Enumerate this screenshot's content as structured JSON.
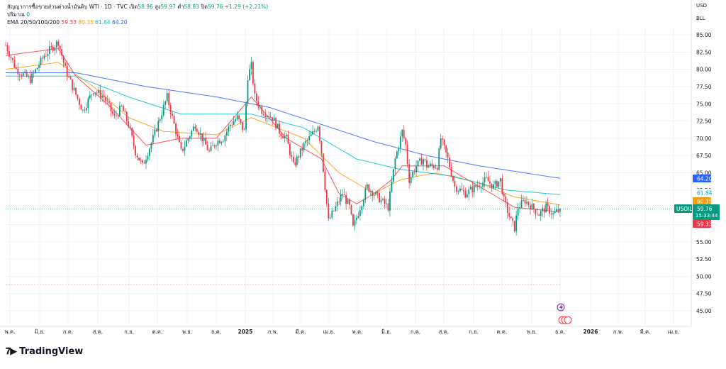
{
  "header": {
    "title": "สัญญาการซื้อขายส่วนต่างน้ำมันดิบ WTI · 1D · TVC",
    "open_label": "เปิด",
    "open": "58.96",
    "high_label": "สูง",
    "high": "59.97",
    "low_label": "ต่ำ",
    "low": "58.83",
    "close_label": "ปิด",
    "close": "59.76",
    "change": "+1.29 (+2.21%)",
    "volume_label": "ปริมาณ",
    "volume": "0",
    "ema_label": "EMA 20/50/100/200",
    "ema_values": [
      "59.33",
      "60.35",
      "61.84",
      "64.20"
    ]
  },
  "price_axis": {
    "unit_top": "USD",
    "unit_sub": "BLL"
  },
  "price_labels": {
    "ema200": "64.20",
    "ema100": "61.84",
    "ema50": "60.35",
    "ema20": "59.33",
    "symbol": "USOIL",
    "last": "59.76",
    "countdown": "15:33:44"
  },
  "brand": {
    "name": "TradingView"
  },
  "colors": {
    "up": "#089981",
    "down": "#f23645",
    "ema20": "#f23645",
    "ema50": "#ff9800",
    "ema100": "#00bcd4",
    "ema200": "#2962ff"
  },
  "chart_data": {
    "type": "line",
    "title": "สัญญาการซื้อขายส่วนต่างน้ำมันดิบ WTI · 1D · TVC",
    "ylim": [
      45,
      85
    ],
    "y_ticks": [
      "85.00",
      "82.50",
      "80.00",
      "77.50",
      "75.00",
      "72.50",
      "70.00",
      "67.50",
      "65.00",
      "62.50",
      "60.00",
      "57.50",
      "55.00",
      "52.50",
      "50.00",
      "47.50",
      "45.00"
    ],
    "x_ticks": [
      "พ.ค.",
      "มิ.ย.",
      "ก.ค.",
      "ส.ค.",
      "ก.ย.",
      "ต.ค.",
      "พ.ย.",
      "ธ.ค.",
      "2025",
      "ก.พ.",
      "มี.ค.",
      "เม.ย.",
      "พ.ค.",
      "มิ.ย.",
      "ก.ค.",
      "ส.ค.",
      "ก.ย.",
      "ต.ค.",
      "พ.ย.",
      "ธ.ค.",
      "2026",
      "ก.พ.",
      "มี.ค.",
      "เม.ย."
    ],
    "x_tick_bold": [
      false,
      false,
      false,
      false,
      false,
      false,
      false,
      false,
      true,
      false,
      false,
      false,
      false,
      false,
      false,
      false,
      false,
      false,
      false,
      false,
      true,
      false,
      false,
      false
    ],
    "price_path": [
      [
        0,
        83.5
      ],
      [
        6,
        80
      ],
      [
        14,
        78.5
      ],
      [
        22,
        82
      ],
      [
        30,
        84
      ],
      [
        34,
        80
      ],
      [
        38,
        77.5
      ],
      [
        44,
        74
      ],
      [
        50,
        77
      ],
      [
        56,
        76
      ],
      [
        62,
        73
      ],
      [
        66,
        74.5
      ],
      [
        70,
        72
      ],
      [
        74,
        68
      ],
      [
        78,
        66
      ],
      [
        84,
        70
      ],
      [
        88,
        73
      ],
      [
        92,
        76
      ],
      [
        96,
        72
      ],
      [
        100,
        68
      ],
      [
        104,
        70
      ],
      [
        108,
        72
      ],
      [
        112,
        70
      ],
      [
        116,
        68
      ],
      [
        120,
        69.5
      ],
      [
        124,
        70
      ],
      [
        128,
        72
      ],
      [
        132,
        73
      ],
      [
        136,
        71
      ],
      [
        138,
        79
      ],
      [
        140,
        80.5
      ],
      [
        142,
        76
      ],
      [
        146,
        74
      ],
      [
        152,
        73
      ],
      [
        156,
        71
      ],
      [
        160,
        70
      ],
      [
        164,
        66
      ],
      [
        170,
        69
      ],
      [
        176,
        71
      ],
      [
        178,
        72
      ],
      [
        180,
        68
      ],
      [
        184,
        58
      ],
      [
        188,
        60
      ],
      [
        192,
        62
      ],
      [
        196,
        60
      ],
      [
        198,
        57
      ],
      [
        202,
        60
      ],
      [
        206,
        63
      ],
      [
        210,
        62
      ],
      [
        214,
        61
      ],
      [
        218,
        60
      ],
      [
        222,
        67
      ],
      [
        224,
        69
      ],
      [
        226,
        71
      ],
      [
        228,
        69
      ],
      [
        230,
        64
      ],
      [
        234,
        66
      ],
      [
        238,
        67
      ],
      [
        240,
        66
      ],
      [
        246,
        66
      ],
      [
        248,
        70
      ],
      [
        252,
        67
      ],
      [
        256,
        63
      ],
      [
        262,
        62
      ],
      [
        268,
        63
      ],
      [
        274,
        64
      ],
      [
        278,
        63
      ],
      [
        282,
        64
      ],
      [
        284,
        61
      ],
      [
        288,
        58
      ],
      [
        290,
        57
      ],
      [
        292,
        60
      ],
      [
        296,
        61
      ],
      [
        300,
        60
      ],
      [
        304,
        59
      ],
      [
        308,
        60
      ],
      [
        312,
        59
      ],
      [
        316,
        59.76
      ]
    ],
    "series": [
      {
        "name": "EMA 20",
        "values": [
          [
            0,
            82
          ],
          [
            30,
            83
          ],
          [
            40,
            79
          ],
          [
            60,
            74.5
          ],
          [
            80,
            69
          ],
          [
            100,
            70
          ],
          [
            120,
            70
          ],
          [
            140,
            76
          ],
          [
            160,
            70
          ],
          [
            180,
            67
          ],
          [
            190,
            62
          ],
          [
            200,
            60.5
          ],
          [
            210,
            62
          ],
          [
            220,
            64
          ],
          [
            226,
            66
          ],
          [
            240,
            66
          ],
          [
            250,
            66
          ],
          [
            270,
            63
          ],
          [
            290,
            60
          ],
          [
            316,
            59.33
          ]
        ]
      },
      {
        "name": "EMA 50",
        "values": [
          [
            0,
            80
          ],
          [
            30,
            81
          ],
          [
            50,
            77.5
          ],
          [
            70,
            73
          ],
          [
            90,
            71
          ],
          [
            120,
            70.5
          ],
          [
            140,
            73
          ],
          [
            170,
            70
          ],
          [
            190,
            65
          ],
          [
            210,
            62
          ],
          [
            225,
            64
          ],
          [
            245,
            65
          ],
          [
            270,
            63.5
          ],
          [
            290,
            61.5
          ],
          [
            316,
            60.35
          ]
        ]
      },
      {
        "name": "EMA 100",
        "values": [
          [
            0,
            79
          ],
          [
            40,
            79
          ],
          [
            70,
            76
          ],
          [
            100,
            73.5
          ],
          [
            140,
            73.5
          ],
          [
            170,
            71.5
          ],
          [
            200,
            67
          ],
          [
            225,
            65.5
          ],
          [
            255,
            64.5
          ],
          [
            285,
            62.5
          ],
          [
            316,
            61.84
          ]
        ]
      },
      {
        "name": "EMA 200",
        "values": [
          [
            0,
            79.5
          ],
          [
            40,
            79.5
          ],
          [
            80,
            77.5
          ],
          [
            120,
            76
          ],
          [
            150,
            74.5
          ],
          [
            180,
            72
          ],
          [
            210,
            69.5
          ],
          [
            240,
            67.5
          ],
          [
            270,
            66
          ],
          [
            316,
            64.2
          ]
        ]
      }
    ]
  }
}
